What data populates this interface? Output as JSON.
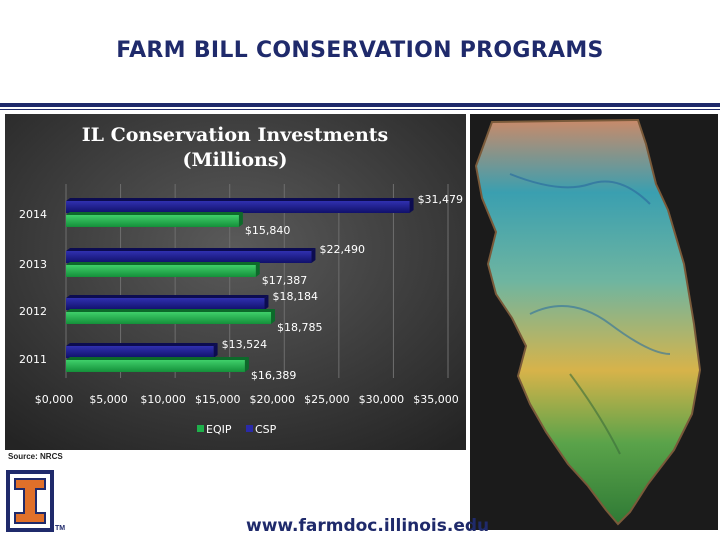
{
  "slide": {
    "title": "FARM BILL CONSERVATION PROGRAMS",
    "source": "Source: NRCS",
    "url": "www.farmdoc.illinois.edu",
    "tm": "TM"
  },
  "colors": {
    "navy": "#1f2a6b",
    "eqip": "#1fb04b",
    "csp": "#1c1c8c",
    "logo_orange": "#e0702a"
  },
  "chart_data": {
    "type": "bar",
    "orientation": "horizontal",
    "title": "IL Conservation Investments (Millions)",
    "title_lines": [
      "IL Conservation Investments",
      "(Millions)"
    ],
    "categories": [
      "2014",
      "2013",
      "2012",
      "2011"
    ],
    "series": [
      {
        "name": "EQIP",
        "values": [
          15840,
          17387,
          18785,
          16389
        ],
        "labels": [
          "$15,840",
          "$17,387",
          "$18,785",
          "$16,389"
        ]
      },
      {
        "name": "CSP",
        "values": [
          31479,
          22490,
          18184,
          13524
        ],
        "labels": [
          "$31,479",
          "$22,490",
          "$18,184",
          "$13,524"
        ]
      }
    ],
    "xlim": [
      0,
      35000
    ],
    "xticks": [
      0,
      5000,
      10000,
      15000,
      20000,
      25000,
      30000,
      35000
    ],
    "xtick_labels": [
      "$0,000",
      "$5,000",
      "$10,000",
      "$15,000",
      "$20,000",
      "$25,000",
      "$30,000",
      "$35,000"
    ],
    "grid": true,
    "legend": "bottom"
  }
}
